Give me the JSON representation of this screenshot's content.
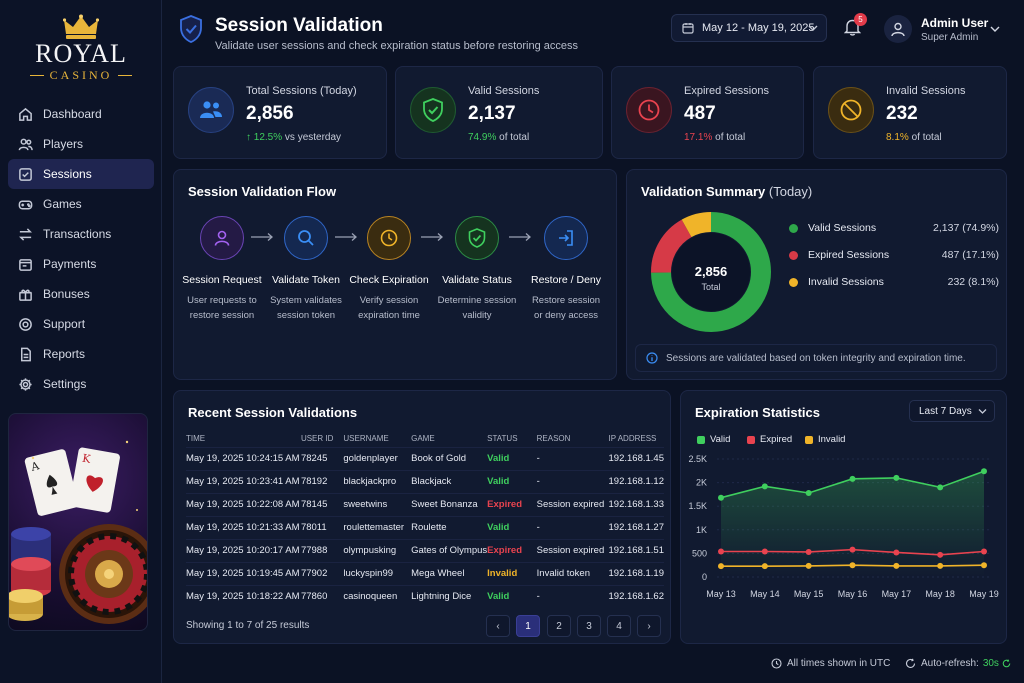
{
  "brand": {
    "line1": "ROYAL",
    "line2": "CASINO"
  },
  "nav": [
    {
      "label": "Dashboard",
      "icon": "home-icon",
      "active": false
    },
    {
      "label": "Players",
      "icon": "users-icon",
      "active": false
    },
    {
      "label": "Sessions",
      "icon": "sessions-icon",
      "active": true
    },
    {
      "label": "Games",
      "icon": "gamepad-icon",
      "active": false
    },
    {
      "label": "Transactions",
      "icon": "transfer-icon",
      "active": false
    },
    {
      "label": "Payments",
      "icon": "payment-icon",
      "active": false
    },
    {
      "label": "Bonuses",
      "icon": "gift-icon",
      "active": false
    },
    {
      "label": "Support",
      "icon": "support-icon",
      "active": false
    },
    {
      "label": "Reports",
      "icon": "report-icon",
      "active": false
    },
    {
      "label": "Settings",
      "icon": "gear-icon",
      "active": false
    }
  ],
  "header": {
    "title": "Session Validation",
    "subtitle": "Validate user sessions and check expiration status before restoring access",
    "date_range": "May 12 - May 19, 2025",
    "notifications": "5",
    "user_name": "Admin User",
    "user_role": "Super Admin"
  },
  "stats": [
    {
      "label": "Total Sessions (Today)",
      "value": "2,856",
      "delta": "12.5%",
      "delta_text": "vs yesterday",
      "color": "#3a78e8"
    },
    {
      "label": "Valid Sessions",
      "value": "2,137",
      "delta": "74.9%",
      "delta_text": "of total",
      "color": "#3fcf5e"
    },
    {
      "label": "Expired Sessions",
      "value": "487",
      "delta": "17.1%",
      "delta_text": "of total",
      "color": "#e9434f"
    },
    {
      "label": "Invalid Sessions",
      "value": "232",
      "delta": "8.1%",
      "delta_text": "of total",
      "color": "#f0b429"
    }
  ],
  "flow": {
    "title": "Session Validation Flow",
    "steps": [
      {
        "name": "Session Request",
        "desc1": "User requests to",
        "desc2": "restore session",
        "color": "#a462f2"
      },
      {
        "name": "Validate Token",
        "desc1": "System validates",
        "desc2": "session token",
        "color": "#3a8ef5"
      },
      {
        "name": "Check Expiration",
        "desc1": "Verify session",
        "desc2": "expiration time",
        "color": "#f0b429"
      },
      {
        "name": "Validate Status",
        "desc1": "Determine session",
        "desc2": "validity",
        "color": "#3fcf5e"
      },
      {
        "name": "Restore / Deny",
        "desc1": "Restore session",
        "desc2": "or deny access",
        "color": "#3a8ef5"
      }
    ]
  },
  "summary": {
    "title": "Validation Summary",
    "title_suffix": "(Today)",
    "total_value": "2,856",
    "total_label": "Total",
    "items": [
      {
        "label": "Valid Sessions",
        "value": "2,137 (74.9%)",
        "color": "#2ea84a"
      },
      {
        "label": "Expired Sessions",
        "value": "487 (17.1%)",
        "color": "#d63a47"
      },
      {
        "label": "Invalid Sessions",
        "value": "232 (8.1%)",
        "color": "#f0b429"
      }
    ],
    "info": "Sessions are validated based on token integrity and expiration time."
  },
  "recent": {
    "title": "Recent Session Validations",
    "columns": [
      "TIME",
      "USER ID",
      "USERNAME",
      "GAME",
      "STATUS",
      "REASON",
      "IP ADDRESS"
    ],
    "rows": [
      {
        "time": "May 19, 2025 10:24:15 AM",
        "user_id": "78245",
        "username": "goldenplayer",
        "game": "Book of Gold",
        "status": "Valid",
        "reason": "-",
        "ip": "192.168.1.45"
      },
      {
        "time": "May 19, 2025 10:23:41 AM",
        "user_id": "78192",
        "username": "blackjackpro",
        "game": "Blackjack",
        "status": "Valid",
        "reason": "-",
        "ip": "192.168.1.12"
      },
      {
        "time": "May 19, 2025 10:22:08 AM",
        "user_id": "78145",
        "username": "sweetwins",
        "game": "Sweet Bonanza",
        "status": "Expired",
        "reason": "Session expired",
        "ip": "192.168.1.33"
      },
      {
        "time": "May 19, 2025 10:21:33 AM",
        "user_id": "78011",
        "username": "roulettemaster",
        "game": "Roulette",
        "status": "Valid",
        "reason": "-",
        "ip": "192.168.1.27"
      },
      {
        "time": "May 19, 2025 10:20:17 AM",
        "user_id": "77988",
        "username": "olympusking",
        "game": "Gates of Olympus",
        "status": "Expired",
        "reason": "Session expired",
        "ip": "192.168.1.51"
      },
      {
        "time": "May 19, 2025 10:19:45 AM",
        "user_id": "77902",
        "username": "luckyspin99",
        "game": "Mega Wheel",
        "status": "Invalid",
        "reason": "Invalid token",
        "ip": "192.168.1.19"
      },
      {
        "time": "May 19, 2025 10:18:22 AM",
        "user_id": "77860",
        "username": "casinoqueen",
        "game": "Lightning Dice",
        "status": "Valid",
        "reason": "-",
        "ip": "192.168.1.62"
      }
    ],
    "showing": "Showing 1 to 7 of 25 results",
    "pages": [
      "1",
      "2",
      "3",
      "4"
    ],
    "prev": "‹",
    "next": "›"
  },
  "expiration": {
    "title": "Expiration Statistics",
    "range": "Last 7 Days"
  },
  "chart_data": {
    "type": "line",
    "categories": [
      "May 13",
      "May 14",
      "May 15",
      "May 16",
      "May 17",
      "May 18",
      "May 19"
    ],
    "series": [
      {
        "name": "Valid",
        "color": "#3fcf5e",
        "values": [
          1680,
          1920,
          1780,
          2080,
          2100,
          1900,
          2240
        ]
      },
      {
        "name": "Expired",
        "color": "#e9434f",
        "values": [
          540,
          540,
          530,
          580,
          520,
          470,
          540
        ]
      },
      {
        "name": "Invalid",
        "color": "#f0b429",
        "values": [
          230,
          230,
          235,
          250,
          235,
          235,
          250
        ]
      }
    ],
    "yticks": [
      "0",
      "500",
      "1K",
      "1.5K",
      "2K",
      "2.5K"
    ],
    "ytick_values": [
      0,
      500,
      1000,
      1500,
      2000,
      2500
    ],
    "ylim": [
      0,
      2500
    ],
    "legend": "top-left"
  },
  "footer": {
    "timezone": "All times shown in UTC",
    "refresh_label": "Auto-refresh:",
    "refresh_value": "30s"
  }
}
